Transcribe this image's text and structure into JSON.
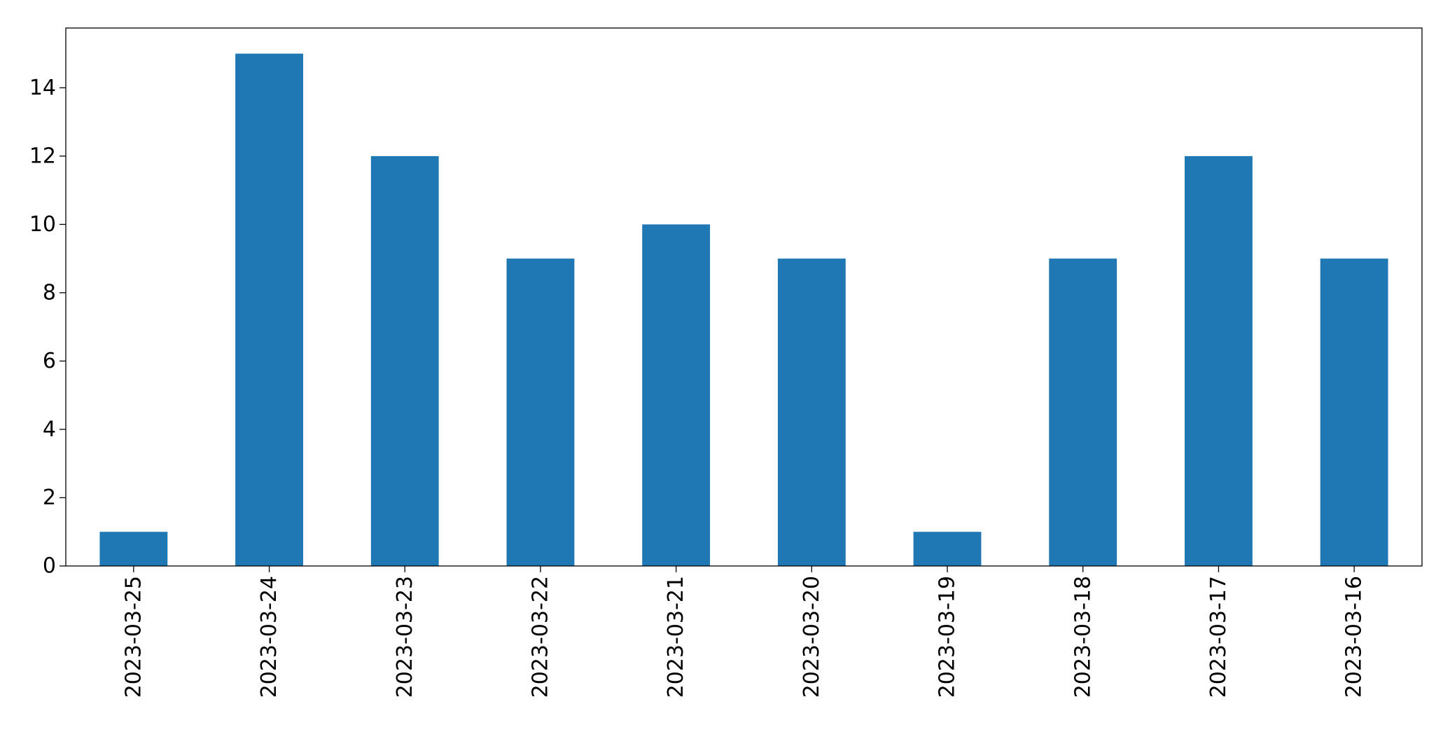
{
  "chart_data": {
    "type": "bar",
    "categories": [
      "2023-03-25",
      "2023-03-24",
      "2023-03-23",
      "2023-03-22",
      "2023-03-21",
      "2023-03-20",
      "2023-03-19",
      "2023-03-18",
      "2023-03-17",
      "2023-03-16"
    ],
    "values": [
      1,
      15,
      12,
      9,
      10,
      9,
      1,
      9,
      12,
      9
    ],
    "color": "#1f77b4",
    "ylim": [
      0,
      15.75
    ],
    "yticks": [
      0,
      2,
      4,
      6,
      8,
      10,
      12,
      14
    ],
    "grid": false
  }
}
